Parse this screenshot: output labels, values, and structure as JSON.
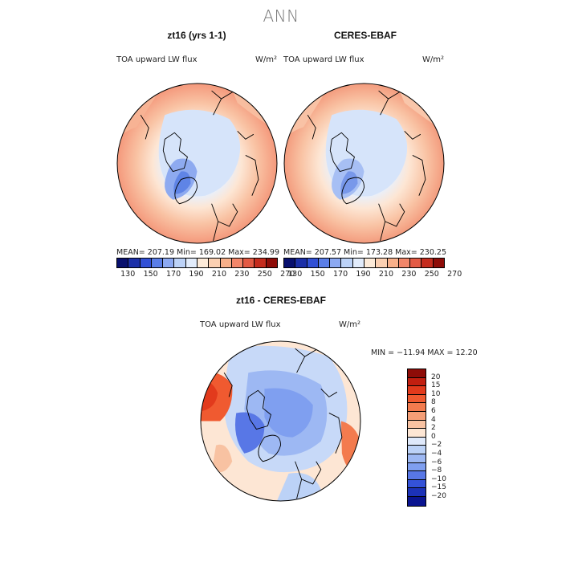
{
  "title": "ANN",
  "panels": [
    {
      "name": "zt16 (yrs 1-1)",
      "variable": "TOA upward LW flux",
      "units": "W/m²",
      "stats": "MEAN= 207.19   Min= 169.02   Max= 234.99"
    },
    {
      "name": "CERES-EBAF",
      "variable": "TOA upward LW flux",
      "units": "W/m²",
      "stats": "MEAN= 207.57   Min= 173.28   Max= 230.25"
    }
  ],
  "diff": {
    "name": "zt16 - CERES-EBAF",
    "variable": "TOA upward LW flux",
    "units": "W/m²",
    "stats": "MIN = −11.94  MAX =  12.20"
  },
  "abs_colorbar": {
    "ticks": [
      "130",
      "150",
      "170",
      "190",
      "210",
      "230",
      "250",
      "270"
    ],
    "colors": [
      "#08106e",
      "#1b2fa8",
      "#3150d6",
      "#5a7ee8",
      "#8ca9f2",
      "#bcd2f7",
      "#e2ecfb",
      "#fdebd9",
      "#fbd0b2",
      "#f8b08a",
      "#f2866a",
      "#e35a44",
      "#c52c1e",
      "#8e0c08"
    ]
  },
  "diff_colorbar": {
    "labels": [
      "20",
      "15",
      "10",
      "8",
      "6",
      "4",
      "2",
      "0",
      "−2",
      "−4",
      "−6",
      "−8",
      "−10",
      "−15",
      "−20"
    ],
    "colors": [
      "#8e0c08",
      "#c21f10",
      "#e23a1c",
      "#f05a30",
      "#f37b4e",
      "#f59e76",
      "#f8c2a2",
      "#fde6d4",
      "#dfe9fb",
      "#bcd2f7",
      "#9db8f3",
      "#7f9ff0",
      "#5877e6",
      "#3452d8",
      "#1c32b8",
      "#0a1490"
    ]
  }
}
